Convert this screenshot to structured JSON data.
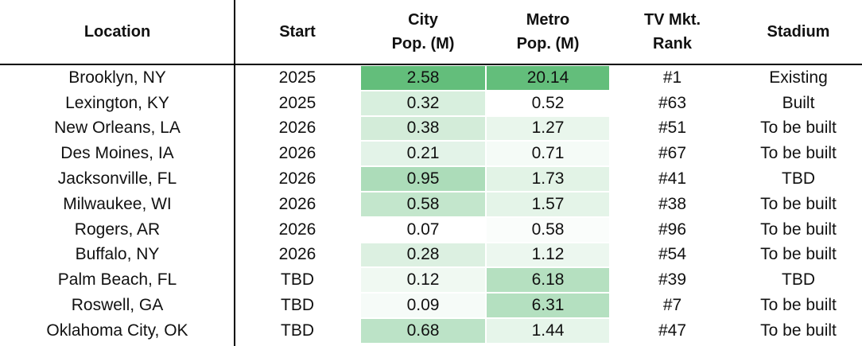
{
  "table": {
    "headers": [
      [
        "Location"
      ],
      [
        "Start"
      ],
      [
        "City",
        "Pop. (M)"
      ],
      [
        "Metro",
        "Pop. (M)"
      ],
      [
        "TV Mkt.",
        "Rank"
      ],
      [
        "Stadium"
      ]
    ],
    "rows": [
      [
        "Brooklyn, NY",
        2025,
        2.58,
        20.14,
        "#1",
        "Existing"
      ],
      [
        "Lexington, KY",
        2025,
        0.32,
        0.52,
        "#63",
        "Built"
      ],
      [
        "New Orleans, LA",
        2026,
        0.38,
        1.27,
        "#51",
        "To be built"
      ],
      [
        "Des Moines, IA",
        2026,
        0.21,
        0.71,
        "#67",
        "To be built"
      ],
      [
        "Jacksonville, FL",
        2026,
        0.95,
        1.73,
        "#41",
        "TBD"
      ],
      [
        "Milwaukee, WI",
        2026,
        0.58,
        1.57,
        "#38",
        "To be built"
      ],
      [
        "Rogers, AR",
        2026,
        0.07,
        0.58,
        "#96",
        "To be built"
      ],
      [
        "Buffalo, NY",
        2026,
        0.28,
        1.12,
        "#54",
        "To be built"
      ],
      [
        "Palm Beach, FL",
        "TBD",
        0.12,
        6.18,
        "#39",
        "TBD"
      ],
      [
        "Roswell, GA",
        "TBD",
        0.09,
        6.31,
        "#7",
        "To be built"
      ],
      [
        "Oklahoma City, OK",
        "TBD",
        0.68,
        1.44,
        "#47",
        "To be built"
      ]
    ],
    "heat_columns": [
      2,
      3
    ],
    "heat_color": "#63be7b"
  }
}
